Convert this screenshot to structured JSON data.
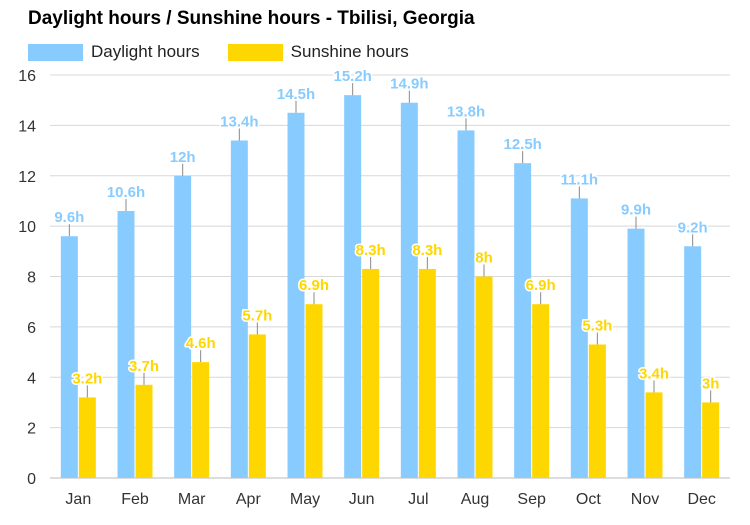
{
  "title": "Daylight hours / Sunshine hours - Tbilisi, Georgia",
  "legend": {
    "position": "top-left"
  },
  "colors": {
    "daylight": "#88ccff",
    "sunshine": "#ffd700",
    "grid": "#d8d8d8",
    "whisker": "#888888"
  },
  "chart_data": {
    "type": "bar",
    "title": "Daylight hours / Sunshine hours - Tbilisi, Georgia",
    "xlabel": "",
    "ylabel": "",
    "ylim": [
      0,
      16
    ],
    "yticks": [
      "0",
      "2",
      "4",
      "6",
      "8",
      "10",
      "12",
      "14",
      "16"
    ],
    "grid": true,
    "categories": [
      "Jan",
      "Feb",
      "Mar",
      "Apr",
      "May",
      "Jun",
      "Jul",
      "Aug",
      "Sep",
      "Oct",
      "Nov",
      "Dec"
    ],
    "series": [
      {
        "name": "Daylight hours",
        "values": [
          9.6,
          10.6,
          12,
          13.4,
          14.5,
          15.2,
          14.9,
          13.8,
          12.5,
          11.1,
          9.9,
          9.2
        ],
        "labels": [
          "9.6h",
          "10.6h",
          "12h",
          "13.4h",
          "14.5h",
          "15.2h",
          "14.9h",
          "13.8h",
          "12.5h",
          "11.1h",
          "9.9h",
          "9.2h"
        ]
      },
      {
        "name": "Sunshine hours",
        "values": [
          3.2,
          3.7,
          4.6,
          5.7,
          6.9,
          8.3,
          8.3,
          8,
          6.9,
          5.3,
          3.4,
          3
        ],
        "labels": [
          "3.2h",
          "3.7h",
          "4.6h",
          "5.7h",
          "6.9h",
          "8.3h",
          "8.3h",
          "8h",
          "6.9h",
          "5.3h",
          "3.4h",
          "3h"
        ]
      }
    ]
  }
}
